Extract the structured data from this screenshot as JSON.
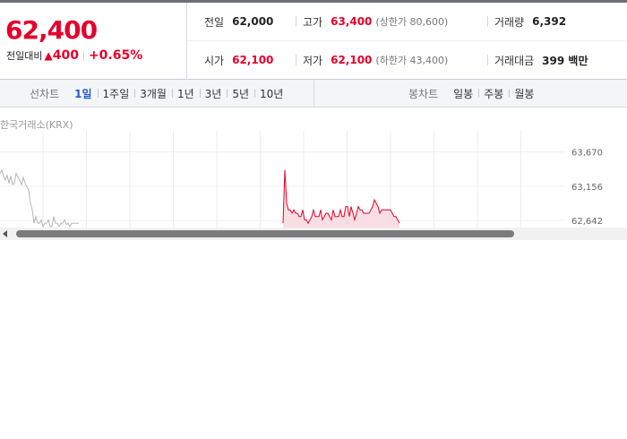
{
  "quote": {
    "price": "62,400",
    "change_label": "전일대비",
    "change_arrow": "▲",
    "change_amount": "400",
    "change_percent": "+0.65%",
    "stats": [
      {
        "label": "전일",
        "value": "62,000",
        "sub": ""
      },
      {
        "label": "고가",
        "value": "63,400",
        "sub": "(상한가 80,600)"
      },
      {
        "label": "거래량",
        "value": "6,392",
        "sub": ""
      },
      {
        "label": "시가",
        "value": "62,100",
        "sub": ""
      },
      {
        "label": "저가",
        "value": "62,100",
        "sub": "(하한가 43,400)"
      },
      {
        "label": "거래대금",
        "value": "399 백만",
        "sub": ""
      }
    ]
  },
  "line_tabs": {
    "label": "선차트",
    "items": [
      "1일",
      "1주일",
      "3개월",
      "1년",
      "3년",
      "5년",
      "10년"
    ],
    "active": "1일"
  },
  "candle_tabs": {
    "label": "봉차트",
    "items": [
      "일봉",
      "주봉",
      "월봉"
    ]
  },
  "chart": {
    "source": "한국거래소(KRX)",
    "y_labels": [
      "63,670",
      "63,156",
      "62,642"
    ],
    "accent_color": "#e4002b",
    "grey_color": "#b5b5b5"
  },
  "chart_data": {
    "type": "line",
    "ylim": [
      62400,
      63800
    ],
    "y_ticks": [
      63670,
      63156,
      62642
    ],
    "series": [
      {
        "name": "",
        "color": "#b5b5b5",
        "x": [
          0,
          1,
          2,
          3,
          4,
          5,
          6,
          7,
          8,
          9,
          10,
          11,
          12,
          13,
          14,
          15,
          16,
          17,
          18,
          19,
          20,
          21,
          22,
          23,
          24,
          25,
          26,
          27,
          28,
          29,
          30,
          31,
          32,
          33,
          34,
          35,
          36,
          37,
          38,
          39,
          40,
          41,
          42,
          43,
          44
        ],
        "y": [
          63350,
          63400,
          63300,
          63250,
          63320,
          63200,
          63310,
          63180,
          63200,
          63350,
          63290,
          63250,
          63180,
          63290,
          63200,
          63150,
          63100,
          62900,
          62800,
          62600,
          62700,
          62600,
          62600,
          62650,
          62550,
          62600,
          62600,
          62650,
          62550,
          62550,
          62700,
          62600,
          62600,
          62550,
          62600,
          62600,
          62650,
          62580,
          62600,
          62550,
          62600,
          62600,
          62600,
          62600,
          62600
        ]
      },
      {
        "name": "",
        "color": "#e4002b",
        "x": [
          158,
          159,
          160,
          161,
          162,
          163,
          164,
          165,
          166,
          167,
          168,
          169,
          170,
          171,
          172,
          173,
          174,
          175,
          176,
          177,
          178,
          179,
          180,
          181,
          182,
          183,
          184,
          185,
          186,
          187,
          188,
          189,
          190,
          191,
          192,
          193,
          194,
          195,
          196,
          197,
          198,
          199,
          200,
          201,
          202,
          203,
          204,
          205,
          206,
          207,
          208,
          209,
          210,
          211,
          212,
          213,
          214,
          215,
          216,
          217,
          218,
          219,
          220,
          221,
          222,
          223
        ],
        "y": [
          62600,
          63400,
          62900,
          62800,
          62800,
          62750,
          62800,
          62750,
          62750,
          62700,
          62700,
          62800,
          62650,
          62650,
          62600,
          62650,
          62700,
          62800,
          62700,
          62700,
          62700,
          62800,
          62650,
          62700,
          62750,
          62750,
          62700,
          62650,
          62800,
          62700,
          62700,
          62700,
          62800,
          62700,
          62700,
          62850,
          62850,
          62700,
          62850,
          62750,
          62650,
          62750,
          62850,
          62800,
          62800,
          62750,
          62750,
          62750,
          62750,
          62800,
          62850,
          62950,
          62900,
          62850,
          62750,
          62800,
          62800,
          62800,
          62800,
          62800,
          62800,
          62750,
          62700,
          62700,
          62650,
          62600
        ]
      }
    ]
  }
}
